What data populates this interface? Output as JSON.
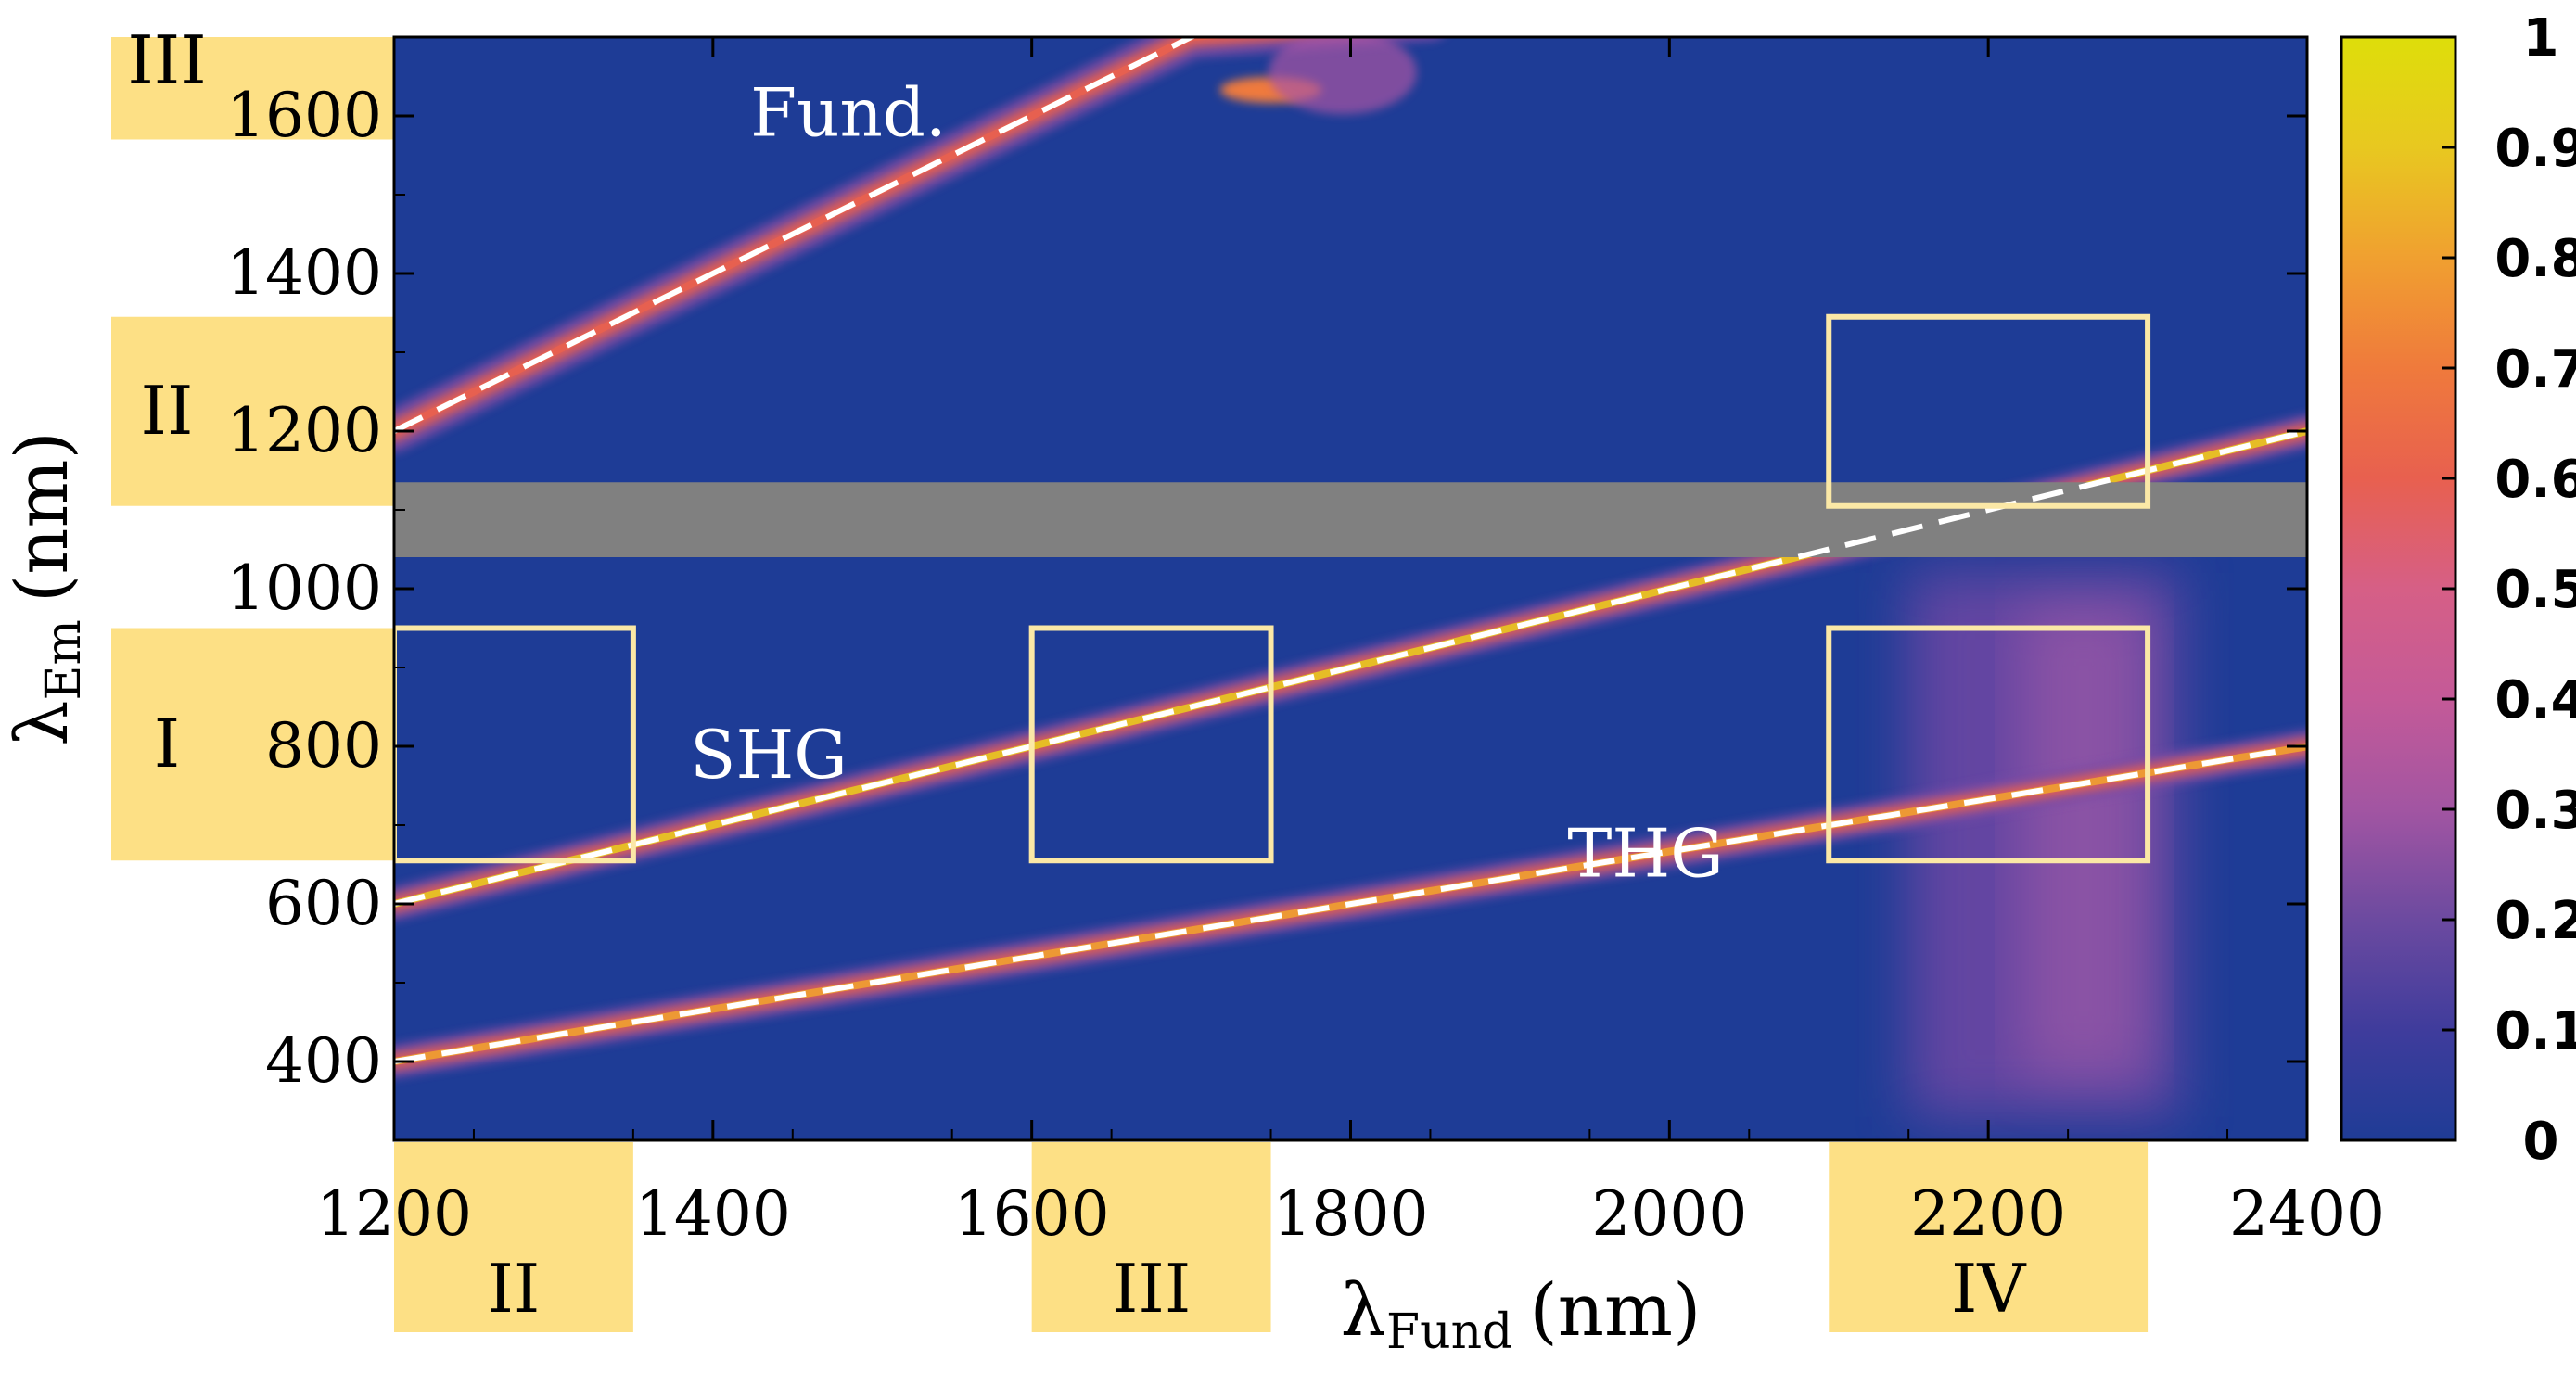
{
  "chart_data": {
    "type": "heatmap",
    "xlabel": {
      "symbol": "λ",
      "subscript": "Fund",
      "unit": "(nm)"
    },
    "ylabel": {
      "symbol": "λ",
      "subscript": "Em",
      "unit": "(nm)"
    },
    "xlim": [
      1200,
      2400
    ],
    "ylim": [
      300,
      1700
    ],
    "xticks": [
      "1200",
      "1400",
      "1600",
      "1800",
      "2000",
      "2200",
      "2400"
    ],
    "yticks": [
      "400",
      "600",
      "800",
      "1000",
      "1200",
      "1400",
      "1600"
    ],
    "colorbar": {
      "range": [
        0,
        1
      ],
      "ticks": [
        "0",
        "0.1",
        "0.2",
        "0.3",
        "0.4",
        "0.5",
        "0.6",
        "0.7",
        "0.8",
        "0.9",
        "1"
      ],
      "colors": [
        "#1f3c96",
        "#3f3c9c",
        "#6c4aa0",
        "#a255a2",
        "#c45a98",
        "#d65f86",
        "#e8604f",
        "#ef7a3c",
        "#f0a030",
        "#e8c820",
        "#dede0a"
      ]
    },
    "colors": {
      "background": "#1e3c96",
      "excluded_band": "#808080",
      "fit_line": "#ffffff",
      "boxes": "#fbe8a6",
      "region_labels": "#fde085"
    },
    "excluded_band": {
      "y_from": 1040,
      "y_to": 1135
    },
    "series": [
      {
        "name": "Fund.",
        "order": 1,
        "fit": [
          [
            1200,
            1200
          ],
          [
            1715,
            1715
          ]
        ],
        "peak_value": 0.65
      },
      {
        "name": "SHG",
        "order": 2,
        "fit": [
          [
            1200,
            600
          ],
          [
            2400,
            1200
          ]
        ],
        "peak_value": 1.0
      },
      {
        "name": "THG",
        "order": 3,
        "fit": [
          [
            1200,
            400
          ],
          [
            2380,
            793
          ]
        ],
        "peak_value": 0.9
      }
    ],
    "annotations": [
      {
        "text": "Fund.",
        "x": 1485,
        "y": 1575
      },
      {
        "text": "SHG",
        "x": 1435,
        "y": 760
      },
      {
        "text": "THG",
        "x": 1985,
        "y": 635
      }
    ],
    "boxes": [
      {
        "x": [
          1200,
          1350
        ],
        "y": [
          655,
          950
        ]
      },
      {
        "x": [
          1600,
          1750
        ],
        "y": [
          655,
          950
        ]
      },
      {
        "x": [
          2100,
          2300
        ],
        "y": [
          655,
          950
        ]
      },
      {
        "x": [
          2100,
          2300
        ],
        "y": [
          1105,
          1345
        ]
      }
    ],
    "region_labels_y": [
      {
        "text": "III",
        "y": [
          1570,
          1700
        ]
      },
      {
        "text": "II",
        "y": [
          1105,
          1345
        ]
      },
      {
        "text": "I",
        "y": [
          655,
          950
        ]
      }
    ],
    "region_labels_x": [
      {
        "text": "II",
        "x": [
          1200,
          1350
        ]
      },
      {
        "text": "III",
        "x": [
          1600,
          1750
        ]
      },
      {
        "text": "IV",
        "x": [
          2100,
          2300
        ]
      }
    ]
  }
}
